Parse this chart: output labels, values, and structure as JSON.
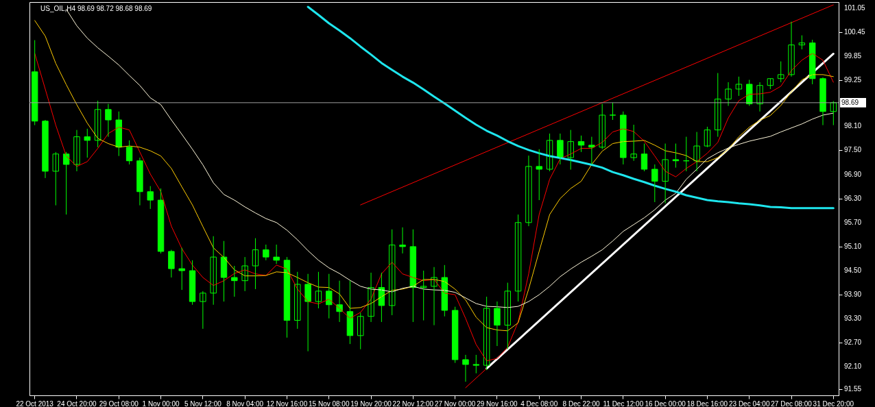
{
  "chart_data": {
    "type": "candlestick",
    "title": "US_OIL,H4  98.69 98.72 98.68 98.69",
    "color": "#00ff00",
    "categories": [
      "22 Oct 2013",
      null,
      null,
      null,
      "24 Oct 20:00",
      null,
      null,
      null,
      "29 Oct 08:00",
      null,
      null,
      null,
      "1 Nov 00:00",
      null,
      null,
      null,
      "5 Nov 12:00",
      null,
      null,
      null,
      "8 Nov 04:00",
      null,
      null,
      null,
      "12 Nov 16:00",
      null,
      null,
      null,
      "15 Nov 08:00",
      null,
      null,
      null,
      "19 Nov 20:00",
      null,
      null,
      null,
      "22 Nov 12:00",
      null,
      null,
      null,
      "27 Nov 00:00",
      null,
      null,
      null,
      "29 Nov 16:00",
      null,
      null,
      null,
      "4 Dec 08:00",
      null,
      null,
      null,
      "8 Dec 22:00",
      null,
      null,
      null,
      "11 Dec 12:00",
      null,
      null,
      null,
      "16 Dec 00:00",
      null,
      null,
      null,
      "18 Dec 16:00",
      null,
      null,
      null,
      "23 Dec 04:00",
      null,
      null,
      null,
      "27 Dec 08:00",
      null,
      null,
      null,
      "31 Dec 20:00"
    ],
    "ohlc": [
      [
        99.46,
        100.25,
        98.13,
        98.23
      ],
      [
        98.23,
        98.26,
        96.81,
        96.98
      ],
      [
        96.98,
        97.46,
        96.13,
        97.41
      ],
      [
        97.41,
        97.46,
        95.9,
        97.15
      ],
      [
        97.15,
        98.01,
        96.98,
        97.84
      ],
      [
        97.84,
        98.04,
        97.32,
        97.75
      ],
      [
        97.75,
        98.74,
        97.58,
        98.52
      ],
      [
        98.52,
        98.66,
        97.84,
        98.26
      ],
      [
        98.26,
        98.47,
        97.36,
        97.58
      ],
      [
        97.58,
        97.75,
        97.15,
        97.24
      ],
      [
        97.24,
        97.32,
        96.13,
        96.47
      ],
      [
        96.47,
        96.61,
        96.04,
        96.26
      ],
      [
        96.26,
        96.55,
        94.93,
        94.98
      ],
      [
        94.98,
        95.02,
        94.33,
        94.55
      ],
      [
        94.55,
        95.07,
        94.02,
        94.5
      ],
      [
        94.5,
        94.76,
        93.65,
        93.73
      ],
      [
        93.73,
        93.99,
        93.05,
        93.94
      ],
      [
        93.94,
        95.36,
        93.65,
        94.84
      ],
      [
        94.84,
        95.24,
        93.73,
        94.33
      ],
      [
        94.33,
        94.62,
        93.85,
        94.25
      ],
      [
        94.25,
        94.84,
        93.99,
        94.62
      ],
      [
        94.62,
        95.31,
        94.04,
        95.02
      ],
      [
        95.02,
        95.15,
        94.76,
        94.84
      ],
      [
        94.84,
        95.15,
        94.67,
        94.76
      ],
      [
        94.76,
        94.84,
        92.83,
        93.26
      ],
      [
        93.26,
        94.47,
        93.05,
        94.16
      ],
      [
        94.16,
        94.42,
        92.49,
        93.73
      ],
      [
        93.73,
        94.47,
        93.56,
        93.99
      ],
      [
        93.99,
        94.42,
        93.31,
        93.65
      ],
      [
        93.65,
        94.25,
        93.22,
        93.48
      ],
      [
        93.48,
        94.25,
        92.67,
        92.88
      ],
      [
        92.88,
        93.45,
        92.54,
        93.36
      ],
      [
        93.36,
        94.45,
        93.22,
        94.08
      ],
      [
        94.08,
        94.45,
        93.22,
        93.63
      ],
      [
        93.63,
        95.53,
        93.39,
        95.14
      ],
      [
        95.14,
        95.58,
        94.93,
        95.1
      ],
      [
        95.1,
        95.53,
        93.22,
        94.08
      ],
      [
        94.08,
        94.5,
        93.26,
        94.11
      ],
      [
        94.11,
        94.59,
        93.14,
        94.33
      ],
      [
        94.33,
        94.64,
        93.36,
        93.51
      ],
      [
        93.51,
        93.6,
        92.2,
        92.28
      ],
      [
        92.28,
        92.4,
        91.73,
        92.16
      ],
      [
        92.16,
        92.4,
        91.94,
        92.14
      ],
      [
        92.14,
        93.85,
        92.02,
        93.56
      ],
      [
        93.56,
        93.73,
        92.62,
        93.14
      ],
      [
        93.14,
        94.2,
        92.54,
        93.99
      ],
      [
        93.99,
        95.9,
        93.73,
        95.7
      ],
      [
        95.7,
        97.37,
        95.61,
        97.1
      ],
      [
        97.1,
        97.53,
        96.26,
        97.03
      ],
      [
        97.03,
        97.92,
        96.98,
        97.75
      ],
      [
        97.75,
        97.92,
        97.15,
        97.32
      ],
      [
        97.32,
        98.01,
        97.02,
        97.72
      ],
      [
        97.72,
        97.87,
        97.46,
        97.63
      ],
      [
        97.63,
        97.84,
        97.15,
        97.58
      ],
      [
        97.58,
        98.66,
        97.53,
        98.38
      ],
      [
        98.38,
        98.69,
        98.26,
        98.38
      ],
      [
        98.38,
        98.47,
        97.15,
        97.32
      ],
      [
        97.32,
        98.14,
        97.24,
        97.41
      ],
      [
        97.41,
        97.67,
        96.98,
        97.03
      ],
      [
        97.03,
        97.15,
        96.21,
        96.73
      ],
      [
        96.73,
        97.67,
        96.18,
        97.27
      ],
      [
        97.27,
        97.67,
        97.07,
        97.24
      ],
      [
        97.24,
        97.84,
        96.98,
        97.24
      ],
      [
        97.24,
        97.96,
        96.98,
        97.61
      ],
      [
        97.61,
        98.09,
        97.58,
        98.01
      ],
      [
        98.01,
        99.43,
        97.84,
        98.78
      ],
      [
        98.78,
        99.2,
        98.61,
        99.03
      ],
      [
        99.03,
        99.34,
        98.86,
        99.15
      ],
      [
        99.15,
        99.26,
        98.61,
        98.66
      ],
      [
        98.66,
        99.2,
        98.47,
        99.12
      ],
      [
        99.12,
        99.29,
        99.03,
        99.29
      ],
      [
        99.29,
        99.72,
        99.2,
        99.39
      ],
      [
        99.39,
        100.71,
        99.34,
        100.13
      ],
      [
        100.13,
        100.37,
        100.02,
        100.18
      ],
      [
        100.18,
        100.26,
        99.15,
        99.29
      ],
      [
        99.29,
        99.32,
        98.13,
        98.47
      ],
      [
        98.47,
        98.73,
        98.13,
        98.69
      ]
    ],
    "series": [
      {
        "type": "line",
        "color": "#ff0000",
        "values": [
          99.92,
          99.03,
          98.13,
          97.36,
          97.1,
          97.22,
          97.55,
          97.92,
          98.08,
          98.01,
          97.46,
          96.91,
          96.47,
          95.61,
          95.05,
          94.64,
          94.33,
          94.13,
          94.25,
          94.43,
          94.52,
          94.42,
          94.38,
          94.64,
          94.54,
          94.04,
          93.73,
          93.67,
          93.79,
          93.56,
          93.31,
          93.46,
          93.79,
          94.42,
          94.71,
          94.42,
          94.33,
          94.25,
          94.28,
          93.94,
          93.9,
          93.31,
          92.66,
          92.25,
          92.31,
          92.59,
          93.22,
          94.42,
          95.9,
          96.78,
          97.29,
          97.41,
          97.55,
          97.55,
          97.7,
          97.96,
          98.04,
          97.97,
          97.73,
          97.36,
          96.98,
          96.84,
          97.05,
          97.22,
          97.43,
          97.7,
          98.31,
          98.74,
          98.9,
          98.91,
          98.95,
          99.1,
          99.49,
          99.75,
          99.92,
          99.75,
          99.2
        ]
      },
      {
        "type": "line",
        "color": "#ffcc00",
        "values": [
          100.74,
          100.35,
          99.67,
          99.14,
          98.64,
          98.18,
          97.8,
          97.67,
          97.58,
          97.61,
          97.58,
          97.49,
          97.36,
          97.05,
          96.59,
          96.14,
          95.6,
          95.07,
          94.83,
          94.52,
          94.37,
          94.37,
          94.38,
          94.47,
          94.45,
          94.33,
          94.2,
          94.09,
          94.08,
          93.92,
          93.56,
          93.58,
          93.68,
          93.85,
          94.01,
          94.04,
          94.11,
          94.28,
          94.28,
          94.23,
          94.04,
          93.77,
          93.34,
          93.08,
          93.02,
          93.0,
          93.2,
          94.04,
          94.98,
          95.9,
          96.3,
          96.55,
          96.73,
          97.15,
          97.48,
          97.67,
          97.72,
          97.73,
          97.75,
          97.63,
          97.49,
          97.44,
          97.37,
          97.22,
          97.22,
          97.32,
          97.53,
          97.84,
          98.08,
          98.25,
          98.37,
          98.62,
          98.96,
          99.26,
          99.39,
          99.39,
          99.34
        ]
      },
      {
        "type": "line",
        "color": "#fff8dc",
        "values": [
          null,
          null,
          null,
          101.02,
          100.61,
          100.3,
          100.06,
          99.85,
          99.63,
          99.37,
          99.12,
          98.81,
          98.64,
          98.26,
          97.9,
          97.53,
          97.14,
          96.69,
          96.4,
          96.26,
          96.09,
          95.94,
          95.8,
          95.7,
          95.51,
          95.27,
          95.0,
          94.76,
          94.57,
          94.43,
          94.26,
          94.11,
          94.04,
          94.02,
          93.97,
          94.06,
          94.11,
          94.04,
          94.02,
          94.01,
          93.96,
          93.82,
          93.68,
          93.61,
          93.6,
          93.58,
          93.61,
          93.73,
          93.9,
          94.11,
          94.35,
          94.54,
          94.71,
          94.86,
          95.02,
          95.24,
          95.48,
          95.65,
          95.82,
          96.02,
          96.26,
          96.43,
          96.78,
          97.03,
          97.29,
          97.44,
          97.56,
          97.65,
          97.73,
          97.79,
          97.85,
          97.96,
          98.06,
          98.16,
          98.28,
          98.38,
          98.43
        ]
      },
      {
        "type": "line",
        "color": "#1ee6ee",
        "values": [
          null,
          null,
          null,
          null,
          null,
          null,
          null,
          null,
          null,
          null,
          null,
          null,
          null,
          null,
          null,
          null,
          null,
          null,
          null,
          null,
          null,
          null,
          null,
          null,
          null,
          null,
          101.08,
          100.88,
          100.67,
          100.49,
          100.3,
          100.09,
          99.89,
          99.68,
          99.51,
          99.34,
          99.19,
          99.02,
          98.84,
          98.67,
          98.49,
          98.31,
          98.14,
          97.99,
          97.87,
          97.73,
          97.61,
          97.51,
          97.43,
          97.36,
          97.31,
          97.26,
          97.2,
          97.14,
          97.07,
          96.96,
          96.88,
          96.79,
          96.71,
          96.62,
          96.54,
          96.47,
          96.38,
          96.32,
          96.26,
          96.23,
          96.21,
          96.18,
          96.16,
          96.13,
          96.09,
          96.08,
          96.06,
          96.06,
          96.06,
          96.06,
          96.06
        ]
      },
      {
        "type": "line",
        "color": "#ff0000",
        "values": [
          null,
          null,
          null,
          null,
          null,
          null,
          null,
          null,
          null,
          null,
          null,
          null,
          null,
          null,
          null,
          null,
          null,
          null,
          null,
          null,
          null,
          null,
          null,
          null,
          null,
          null,
          null,
          null,
          null,
          null,
          null,
          96.14,
          null,
          null,
          null,
          null,
          null,
          null,
          null,
          null,
          null,
          null,
          null,
          null,
          null,
          null,
          null,
          null,
          null,
          null,
          null,
          null,
          null,
          null,
          null,
          null,
          null,
          null,
          null,
          null,
          null,
          null,
          null,
          null,
          null,
          null,
          null,
          null,
          null,
          null,
          null,
          null,
          null,
          null,
          null,
          null,
          101.13
        ]
      },
      {
        "type": "line",
        "color": "#ffffff",
        "values": [
          null,
          null,
          null,
          null,
          null,
          null,
          null,
          null,
          null,
          null,
          null,
          null,
          null,
          null,
          null,
          null,
          null,
          null,
          null,
          null,
          null,
          null,
          null,
          null,
          null,
          null,
          null,
          null,
          null,
          null,
          null,
          null,
          null,
          null,
          null,
          null,
          null,
          null,
          null,
          null,
          null,
          null,
          null,
          92.06,
          null,
          null,
          null,
          null,
          null,
          null,
          null,
          null,
          null,
          null,
          null,
          null,
          null,
          null,
          null,
          null,
          null,
          null,
          null,
          null,
          null,
          null,
          null,
          null,
          null,
          null,
          null,
          null,
          null,
          null,
          null,
          null,
          99.91
        ]
      },
      {
        "type": "line",
        "color": "#ff0000",
        "values": [
          null,
          null,
          null,
          null,
          null,
          null,
          null,
          null,
          null,
          null,
          null,
          null,
          null,
          null,
          null,
          null,
          null,
          null,
          null,
          null,
          null,
          null,
          null,
          null,
          null,
          null,
          null,
          null,
          null,
          null,
          null,
          null,
          null,
          null,
          null,
          null,
          null,
          null,
          null,
          null,
          null,
          91.58,
          null,
          92.06,
          null,
          null,
          null,
          null,
          null,
          null,
          null,
          null,
          null,
          null,
          null,
          null,
          null,
          null,
          null,
          null,
          null,
          null,
          null,
          null,
          null,
          null,
          null,
          null,
          null,
          null,
          null,
          null,
          null,
          null,
          null,
          null,
          null
        ]
      }
    ],
    "ref_lines": [
      {
        "axis": "y",
        "value": 98.69,
        "label": "98.69",
        "color": "#a0a0a0"
      }
    ],
    "ylim": [
      91.39,
      101.2
    ],
    "yticks": [
      101.05,
      100.45,
      99.85,
      99.25,
      {
        "value": 98.1,
        "label": "98.10"
      },
      {
        "value": 97.5,
        "label": "97.50"
      },
      {
        "value": 96.9,
        "label": "96.90"
      },
      {
        "value": 96.3,
        "label": "96.30"
      },
      {
        "value": 95.7,
        "label": "95.70"
      },
      {
        "value": 95.1,
        "label": "95.10"
      },
      {
        "value": 94.5,
        "label": "94.50"
      },
      {
        "value": 93.9,
        "label": "93.90"
      },
      {
        "value": 93.3,
        "label": "93.30"
      },
      {
        "value": 92.7,
        "label": "92.70"
      },
      {
        "value": 92.1,
        "label": "92.10"
      },
      91.55
    ]
  }
}
